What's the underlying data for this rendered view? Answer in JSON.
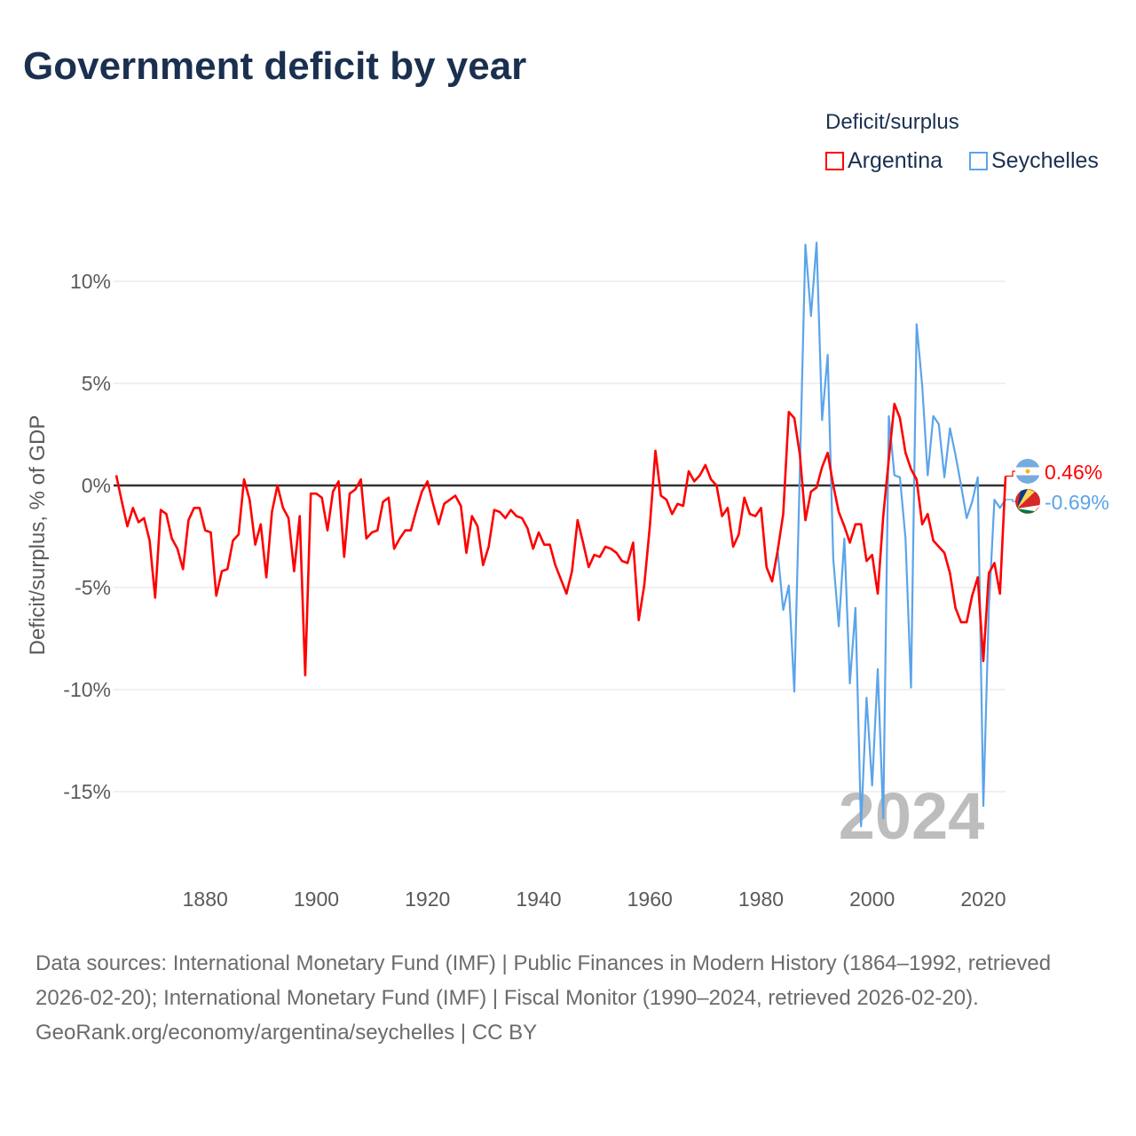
{
  "title": "Government deficit by year",
  "legend": {
    "title": "Deficit/surplus",
    "items": [
      {
        "label": "Argentina",
        "color": "#ff0000"
      },
      {
        "label": "Seychelles",
        "color": "#5ba4ea"
      }
    ]
  },
  "watermark_year": "2024",
  "footer": {
    "sources": "Data sources: International Monetary Fund (IMF) | Public Finances in Modern History (1864–1992, retrieved 2026-02-20); International Monetary Fund (IMF) | Fiscal Monitor (1990–2024, retrieved 2026-02-20).",
    "credit": "GeoRank.org/economy/argentina/seychelles | CC BY"
  },
  "chart_data": {
    "type": "line",
    "title": "Government deficit by year",
    "xlabel": "",
    "ylabel": "Deficit/surplus, % of GDP",
    "xlim": [
      1864,
      2024
    ],
    "ylim": [
      -18,
      13
    ],
    "x_ticks": [
      1880,
      1900,
      1920,
      1940,
      1960,
      1980,
      2000,
      2020
    ],
    "x_tick_labels": [
      "1880",
      "1900",
      "1920",
      "1940",
      "1960",
      "1980",
      "2000",
      "2020"
    ],
    "y_ticks": [
      10,
      5,
      0,
      -5,
      -10,
      -15
    ],
    "y_tick_labels": [
      "10%",
      "5%",
      "0%",
      "-5%",
      "-10%",
      "-15%"
    ],
    "grid": true,
    "legend_position": "top-right",
    "end_labels": [
      "0.46%",
      "-0.69%"
    ],
    "series": [
      {
        "name": "Argentina",
        "color": "#ff0000",
        "start_year": 1864,
        "values": [
          0.5,
          -0.8,
          -2.0,
          -1.1,
          -1.8,
          -1.6,
          -2.7,
          -5.5,
          -1.2,
          -1.4,
          -2.6,
          -3.1,
          -4.1,
          -1.7,
          -1.1,
          -1.1,
          -2.2,
          -2.3,
          -5.4,
          -4.2,
          -4.1,
          -2.7,
          -2.4,
          0.3,
          -0.7,
          -2.9,
          -1.9,
          -4.5,
          -1.3,
          0.0,
          -1.1,
          -1.6,
          -4.2,
          -1.5,
          -9.3,
          -0.4,
          -0.4,
          -0.6,
          -2.2,
          -0.3,
          0.2,
          -3.5,
          -0.4,
          -0.2,
          0.3,
          -2.6,
          -2.3,
          -2.2,
          -0.8,
          -0.6,
          -3.1,
          -2.6,
          -2.2,
          -2.2,
          -1.2,
          -0.3,
          0.2,
          -0.9,
          -1.9,
          -0.9,
          -0.7,
          -0.5,
          -1.0,
          -3.3,
          -1.5,
          -2.0,
          -3.9,
          -3.0,
          -1.2,
          -1.3,
          -1.6,
          -1.2,
          -1.5,
          -1.6,
          -2.1,
          -3.1,
          -2.3,
          -2.9,
          -2.9,
          -3.9,
          -4.6,
          -5.3,
          -4.2,
          -1.7,
          -2.8,
          -4.0,
          -3.4,
          -3.5,
          -3.0,
          -3.1,
          -3.3,
          -3.7,
          -3.8,
          -2.8,
          -6.6,
          -4.9,
          -2.0,
          1.7,
          -0.5,
          -0.7,
          -1.4,
          -0.9,
          -1.0,
          0.7,
          0.2,
          0.5,
          1.0,
          0.3,
          0.0,
          -1.5,
          -1.1,
          -3.0,
          -2.4,
          -0.6,
          -1.4,
          -1.5,
          -1.1,
          -4.0,
          -4.7,
          -3.2,
          -1.4,
          3.6,
          3.3,
          1.5,
          -1.7,
          -0.3,
          -0.1,
          0.9,
          1.6,
          0.0,
          -1.3,
          -2.0,
          -2.8,
          -1.9,
          -1.9,
          -3.7,
          -3.4,
          -5.3,
          -1.5,
          1.3,
          4.0,
          3.3,
          1.6,
          0.8,
          0.3,
          -1.9,
          -1.4,
          -2.7,
          -3.0,
          -3.3,
          -4.3,
          -6.0,
          -6.7,
          -6.7,
          -5.4,
          -4.5,
          -8.6,
          -4.3,
          -3.8,
          -5.3,
          0.46
        ]
      },
      {
        "name": "Seychelles",
        "color": "#5ba4ea",
        "start_year": 1983,
        "values": [
          -3.2,
          -6.1,
          -4.9,
          -10.1,
          0.8,
          11.8,
          8.3,
          11.9,
          3.2,
          6.4,
          -3.6,
          -6.9,
          -2.6,
          -9.7,
          -6.0,
          -16.7,
          -10.4,
          -14.7,
          -9.0,
          -16.3,
          3.4,
          0.5,
          0.4,
          -2.6,
          -9.9,
          7.9,
          4.9,
          0.5,
          3.4,
          3.0,
          0.4,
          2.8,
          1.5,
          0.0,
          -1.6,
          -0.8,
          0.4,
          -15.7,
          -6.0,
          -0.7,
          -1.1,
          -0.69
        ]
      }
    ]
  }
}
